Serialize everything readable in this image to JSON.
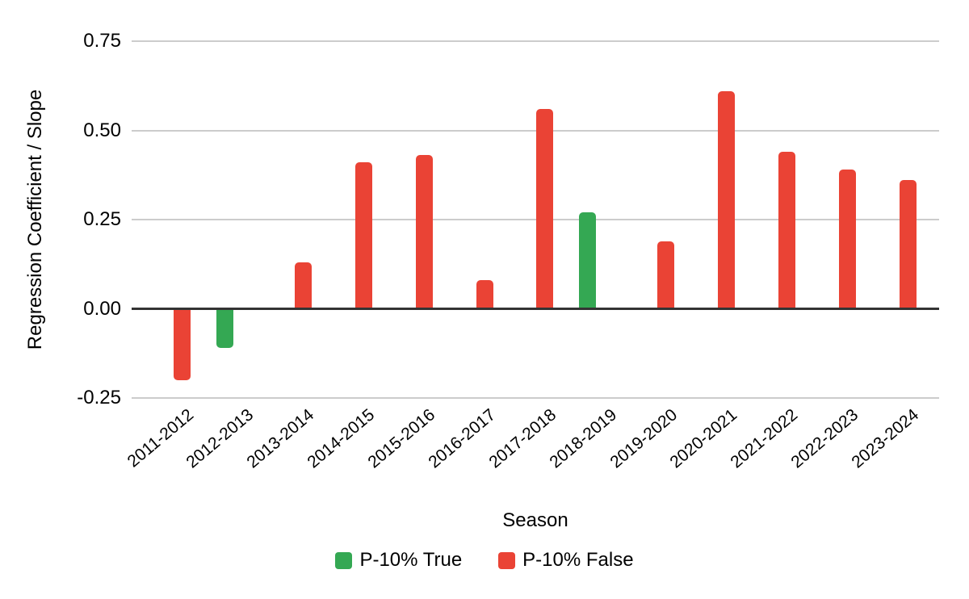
{
  "chart_data": {
    "type": "bar",
    "title": "",
    "xlabel": "Season",
    "ylabel": "Regression Coefficient / Slope",
    "categories": [
      "2011-2012",
      "2012-2013",
      "2013-2014",
      "2014-2015",
      "2015-2016",
      "2016-2017",
      "2017-2018",
      "2018-2019",
      "2019-2020",
      "2020-2021",
      "2021-2022",
      "2022-2023",
      "2023-2024"
    ],
    "series": [
      {
        "name": "P-10% True",
        "color": "#34A853",
        "values": [
          null,
          -0.11,
          null,
          null,
          null,
          null,
          null,
          0.27,
          null,
          null,
          null,
          null,
          null
        ]
      },
      {
        "name": "P-10% False",
        "color": "#EA4335",
        "values": [
          -0.2,
          null,
          0.13,
          0.41,
          0.43,
          0.08,
          0.56,
          null,
          0.19,
          0.61,
          0.44,
          0.39,
          0.36
        ]
      }
    ],
    "ylim": [
      -0.25,
      0.75
    ],
    "yticks": [
      {
        "value": -0.25,
        "label": "-0.25"
      },
      {
        "value": 0,
        "label": "0.00"
      },
      {
        "value": 0.25,
        "label": "0.25"
      },
      {
        "value": 0.5,
        "label": "0.50"
      },
      {
        "value": 0.75,
        "label": "0.75"
      }
    ],
    "grid": true,
    "legend_position": "bottom"
  },
  "colors": {
    "grid": "#CCCCCC",
    "axis": "#333333",
    "text": "#000000",
    "background": "#FFFFFF",
    "true_series": "#34A853",
    "false_series": "#EA4335"
  }
}
